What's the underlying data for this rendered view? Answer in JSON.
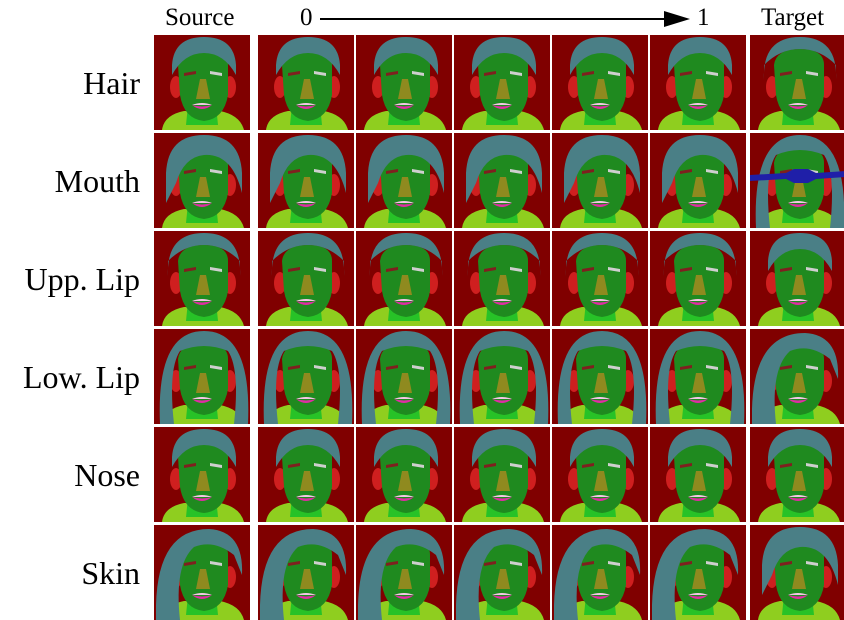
{
  "headers": {
    "source": "Source",
    "target": "Target",
    "interp_start": "0",
    "interp_end": "1"
  },
  "rows": [
    {
      "label": "Hair"
    },
    {
      "label": "Mouth"
    },
    {
      "label": "Upp. Lip"
    },
    {
      "label": "Low. Lip"
    },
    {
      "label": "Nose"
    },
    {
      "label": "Skin"
    }
  ],
  "colors": {
    "background": "#800000",
    "hair": "#4a7f86",
    "skin": "#1f8a1f",
    "neck": "#27c227",
    "clothes": "#8fce1f",
    "nose": "#8f8a1f",
    "ear": "#cf1f1f",
    "upper_lip": "#f5c6e6",
    "lower_lip": "#e02ca4",
    "mouth": "#cfcf2c",
    "brow": "#7f1f1f",
    "eye": "#cfcfcf",
    "glasses": "#1f1fa8"
  }
}
